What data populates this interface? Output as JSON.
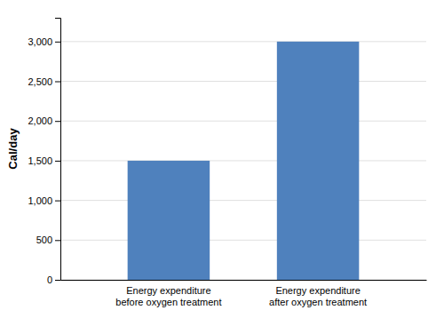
{
  "chart_data": {
    "type": "bar",
    "categories": [
      "Energy expenditure\nbefore oxygen treatment",
      "Energy expenditure\nafter oxygen treatment"
    ],
    "values": [
      1500,
      3000
    ],
    "color": "#4F81BD",
    "ylabel": "Cal/day",
    "ylim": [
      0,
      3300
    ],
    "yticks": [
      0,
      500,
      {
        "value": 1000,
        "label": "1,000"
      },
      {
        "value": 1500,
        "label": "1,500"
      },
      {
        "value": 2000,
        "label": "2,000"
      },
      {
        "value": 2500,
        "label": "2,500"
      },
      {
        "value": 3000,
        "label": "3,000"
      }
    ],
    "grid": true
  }
}
